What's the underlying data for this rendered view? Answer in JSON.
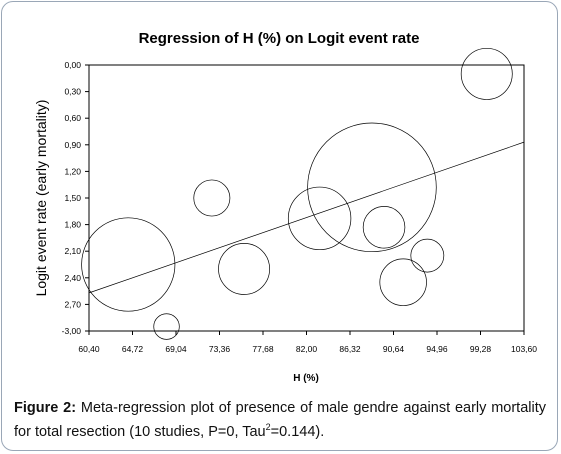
{
  "chart_data": {
    "type": "scatter",
    "title": "Regression of H (%) on Logit event rate",
    "xlabel": "H (%)",
    "ylabel": "Logit event rate (early mortality)",
    "xlim": [
      60.4,
      103.6
    ],
    "ylim": [
      0.0,
      -3.0
    ],
    "y_axis_inverted": true,
    "x_ticks": [
      "60,40",
      "64,72",
      "69,04",
      "73,36",
      "77,68",
      "82,00",
      "86,32",
      "90,64",
      "94,96",
      "99,28",
      "103,60"
    ],
    "y_ticks": [
      "0,00",
      "0,30",
      "0,60",
      "0,90",
      "1,20",
      "1,50",
      "1,80",
      "2,10",
      "2,40",
      "2,70",
      "-3,00"
    ],
    "points": [
      {
        "x": 99.9,
        "y": -0.1,
        "weight": 0.6
      },
      {
        "x": 72.6,
        "y": -1.5,
        "weight": 0.3
      },
      {
        "x": 88.5,
        "y": -1.38,
        "weight": 3.8
      },
      {
        "x": 83.3,
        "y": -1.73,
        "weight": 0.9
      },
      {
        "x": 89.7,
        "y": -1.83,
        "weight": 0.4
      },
      {
        "x": 64.3,
        "y": -2.25,
        "weight": 2.0
      },
      {
        "x": 75.8,
        "y": -2.3,
        "weight": 0.6
      },
      {
        "x": 91.6,
        "y": -2.45,
        "weight": 0.5
      },
      {
        "x": 94.0,
        "y": -2.15,
        "weight": 0.25
      },
      {
        "x": 68.1,
        "y": -2.95,
        "weight": 0.15
      }
    ],
    "regression_line": {
      "x": [
        60.4,
        103.6
      ],
      "y": [
        -2.57,
        -0.87
      ]
    },
    "grid": false,
    "legend": "none"
  },
  "caption": {
    "label": "Figure 2:",
    "text": " Meta-regression plot of presence of male gendre against early mortality for total resection (10 studies, P=0, Tau",
    "superscript": "2",
    "text_end": "=0.144)."
  }
}
